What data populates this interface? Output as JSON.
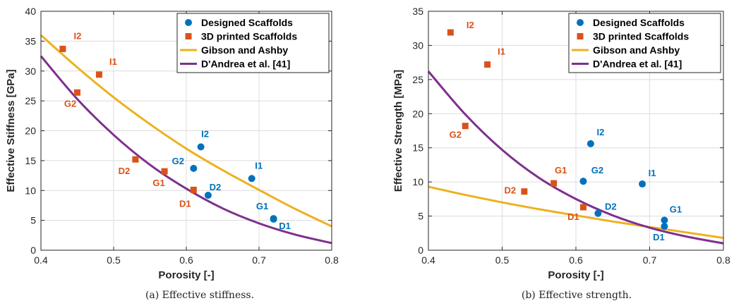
{
  "chart_data": [
    {
      "type": "scatter",
      "xlabel": "Porosity [-]",
      "ylabel": "Effective Stiffness [GPa]",
      "caption": "(a) Effective stiffness.",
      "xlim": [
        0.4,
        0.8
      ],
      "ylim": [
        0,
        40
      ],
      "xticks": [
        "0.4",
        "0.5",
        "0.6",
        "0.7",
        "0.8"
      ],
      "yticks": [
        "0",
        "5",
        "10",
        "15",
        "20",
        "25",
        "30",
        "35",
        "40"
      ],
      "grid": true,
      "legend_position": "top-right",
      "legend": [
        "Designed Scaffolds",
        "3D printed Scaffolds",
        "Gibson and Ashby",
        "D'Andrea et al. [41]"
      ],
      "series": [
        {
          "name": "Designed Scaffolds",
          "marker": "circle",
          "color": "#0072BD",
          "points": [
            {
              "label": "I2",
              "x": 0.62,
              "y": 17.3
            },
            {
              "label": "G2",
              "x": 0.61,
              "y": 13.7
            },
            {
              "label": "D2",
              "x": 0.63,
              "y": 9.2
            },
            {
              "label": "I1",
              "x": 0.69,
              "y": 12.0
            },
            {
              "label": "G1",
              "x": 0.72,
              "y": 5.3
            },
            {
              "label": "D1",
              "x": 0.72,
              "y": 5.2
            }
          ]
        },
        {
          "name": "3D printed Scaffolds",
          "marker": "square",
          "color": "#D95319",
          "points": [
            {
              "label": "I2",
              "x": 0.43,
              "y": 33.7
            },
            {
              "label": "I1",
              "x": 0.48,
              "y": 29.4
            },
            {
              "label": "G2",
              "x": 0.45,
              "y": 26.4
            },
            {
              "label": "D2",
              "x": 0.53,
              "y": 15.2
            },
            {
              "label": "G1",
              "x": 0.57,
              "y": 13.2
            },
            {
              "label": "D1",
              "x": 0.61,
              "y": 10.1
            }
          ]
        },
        {
          "name": "Gibson and Ashby",
          "type": "line",
          "color": "#EDB120",
          "x": [
            0.4,
            0.45,
            0.5,
            0.55,
            0.6,
            0.65,
            0.7,
            0.75,
            0.8
          ],
          "y": [
            36.0,
            30.6,
            25.6,
            21.1,
            17.0,
            13.4,
            10.1,
            6.9,
            4.0
          ]
        },
        {
          "name": "D'Andrea et al. [41]",
          "type": "line",
          "color": "#7E2F8E",
          "x": [
            0.4,
            0.45,
            0.5,
            0.55,
            0.6,
            0.65,
            0.7,
            0.75,
            0.8
          ],
          "y": [
            32.5,
            25.3,
            19.3,
            14.3,
            10.3,
            7.0,
            4.5,
            2.6,
            1.2
          ]
        }
      ]
    },
    {
      "type": "scatter",
      "xlabel": "Porosity [-]",
      "ylabel": "Effective Strength [MPa]",
      "caption": "(b) Effective strength.",
      "xlim": [
        0.4,
        0.8
      ],
      "ylim": [
        0,
        35
      ],
      "xticks": [
        "0.4",
        "0.5",
        "0.6",
        "0.7",
        "0.8"
      ],
      "yticks": [
        "0",
        "5",
        "10",
        "15",
        "20",
        "25",
        "30",
        "35"
      ],
      "grid": true,
      "legend_position": "top-right",
      "legend": [
        "Designed Scaffolds",
        "3D printed Scaffolds",
        "Gibson and Ashby",
        "D'Andrea et al. [41]"
      ],
      "series": [
        {
          "name": "Designed Scaffolds",
          "marker": "circle",
          "color": "#0072BD",
          "points": [
            {
              "label": "I2",
              "x": 0.62,
              "y": 15.6
            },
            {
              "label": "G2",
              "x": 0.61,
              "y": 10.1
            },
            {
              "label": "I1",
              "x": 0.69,
              "y": 9.7
            },
            {
              "label": "D2",
              "x": 0.63,
              "y": 5.4
            },
            {
              "label": "G1",
              "x": 0.72,
              "y": 4.4
            },
            {
              "label": "D1",
              "x": 0.72,
              "y": 3.5
            }
          ]
        },
        {
          "name": "3D printed Scaffolds",
          "marker": "square",
          "color": "#D95319",
          "points": [
            {
              "label": "I2",
              "x": 0.43,
              "y": 31.9
            },
            {
              "label": "I1",
              "x": 0.48,
              "y": 27.2
            },
            {
              "label": "G2",
              "x": 0.45,
              "y": 18.2
            },
            {
              "label": "G1",
              "x": 0.57,
              "y": 9.8
            },
            {
              "label": "D2",
              "x": 0.53,
              "y": 8.6
            },
            {
              "label": "D1",
              "x": 0.61,
              "y": 6.3
            }
          ]
        },
        {
          "name": "Gibson and Ashby",
          "type": "line",
          "color": "#EDB120",
          "x": [
            0.4,
            0.45,
            0.5,
            0.55,
            0.6,
            0.65,
            0.7,
            0.75,
            0.8
          ],
          "y": [
            9.3,
            8.1,
            7.0,
            6.0,
            5.1,
            4.2,
            3.4,
            2.6,
            1.8
          ]
        },
        {
          "name": "D'Andrea et al. [41]",
          "type": "line",
          "color": "#7E2F8E",
          "x": [
            0.4,
            0.45,
            0.5,
            0.55,
            0.6,
            0.65,
            0.7,
            0.75,
            0.8
          ],
          "y": [
            26.2,
            19.9,
            14.7,
            10.6,
            7.5,
            5.1,
            3.3,
            2.0,
            1.0
          ]
        }
      ]
    }
  ]
}
